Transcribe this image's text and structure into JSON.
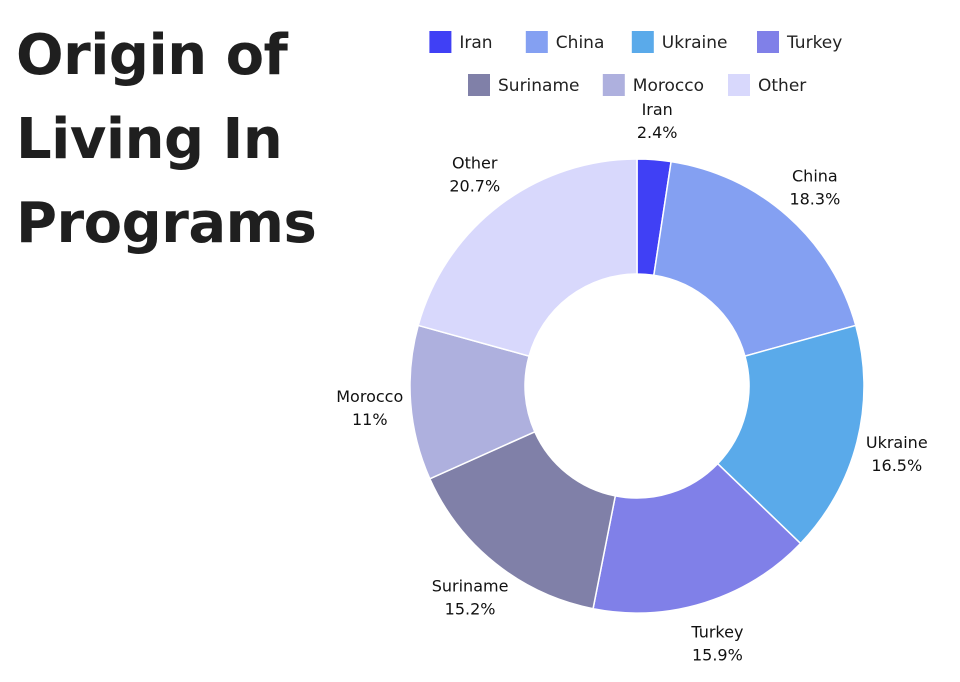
{
  "title_lines": [
    "Origin of",
    "Living In",
    "Programs"
  ],
  "chart_data": {
    "type": "pie",
    "donut": true,
    "legend_position": "top",
    "categories": [
      "Iran",
      "China",
      "Ukraine",
      "Turkey",
      "Suriname",
      "Morocco",
      "Other"
    ],
    "values": [
      2.4,
      18.3,
      16.5,
      15.9,
      15.2,
      11,
      20.7
    ],
    "value_labels": [
      "2.4%",
      "18.3%",
      "16.5%",
      "15.9%",
      "15.2%",
      "11%",
      "20.7%"
    ],
    "colors": [
      "#4040f5",
      "#84a0f2",
      "#5aaaea",
      "#8080e8",
      "#8080a8",
      "#aeb0de",
      "#d8d8fc"
    ]
  }
}
